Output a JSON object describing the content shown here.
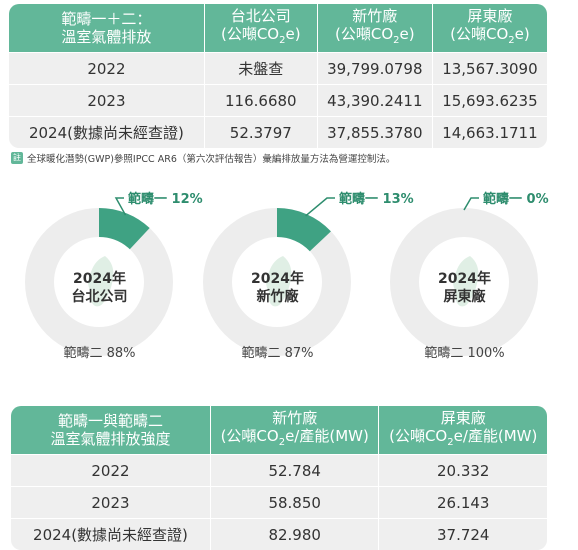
{
  "table1": {
    "header": {
      "col1_line1": "範疇一＋二：",
      "col1_line2": "溫室氣體排放",
      "col2_line1": "台北公司",
      "col3_line1": "新竹廠",
      "col4_line1": "屏東廠",
      "unit_prefix": "(公噸CO",
      "unit_sub": "2",
      "unit_suffix": "e)"
    },
    "rows": [
      {
        "year": "2022",
        "taipei": "未盤查",
        "hsinchu": "39,799.0798",
        "pingtung": "13,567.3090"
      },
      {
        "year": "2023",
        "taipei": "116.6680",
        "hsinchu": "43,390.2411",
        "pingtung": "15,693.6235"
      },
      {
        "year": "2024(數據尚未經查證)",
        "taipei": "52.3797",
        "hsinchu": "37,855.3780",
        "pingtung": "14,663.1711"
      }
    ]
  },
  "note": {
    "icon": "註",
    "text": "全球暖化潛勢(GWP)參照IPCC AR6（第六次評估報告）彙編排放量方法為營運控制法。"
  },
  "donuts": [
    {
      "year_label": "2024年",
      "site": "台北公司",
      "scope1_label": "範疇一 12%",
      "scope2_label": "範疇二 88%",
      "scope1_pct": 12
    },
    {
      "year_label": "2024年",
      "site": "新竹廠",
      "scope1_label": "範疇一 13%",
      "scope2_label": "範疇二 87%",
      "scope1_pct": 13
    },
    {
      "year_label": "2024年",
      "site": "屏東廠",
      "scope1_label": "範疇一 0%",
      "scope2_label": "範疇二 100%",
      "scope1_pct": 0
    }
  ],
  "table2": {
    "header": {
      "col1_line1": "範疇一與範疇二",
      "col1_line2": "溫室氣體排放強度",
      "col2_line1": "新竹廠",
      "col3_line1": "屏東廠",
      "unit_prefix": "(公噸CO",
      "unit_sub": "2",
      "unit_suffix": "e/產能(MW)"
    },
    "rows": [
      {
        "year": "2022",
        "hsinchu": "52.784",
        "pingtung": "20.332"
      },
      {
        "year": "2023",
        "hsinchu": "58.850",
        "pingtung": "26.143"
      },
      {
        "year": "2024(數據尚未經查證)",
        "hsinchu": "82.980",
        "pingtung": "37.724"
      }
    ]
  },
  "colors": {
    "accent": "#62b799",
    "scope1_fill": "#3fa283",
    "ring": "#ededed",
    "map_shape": "#d8ebdf",
    "label_green": "#2e8d6e"
  }
}
